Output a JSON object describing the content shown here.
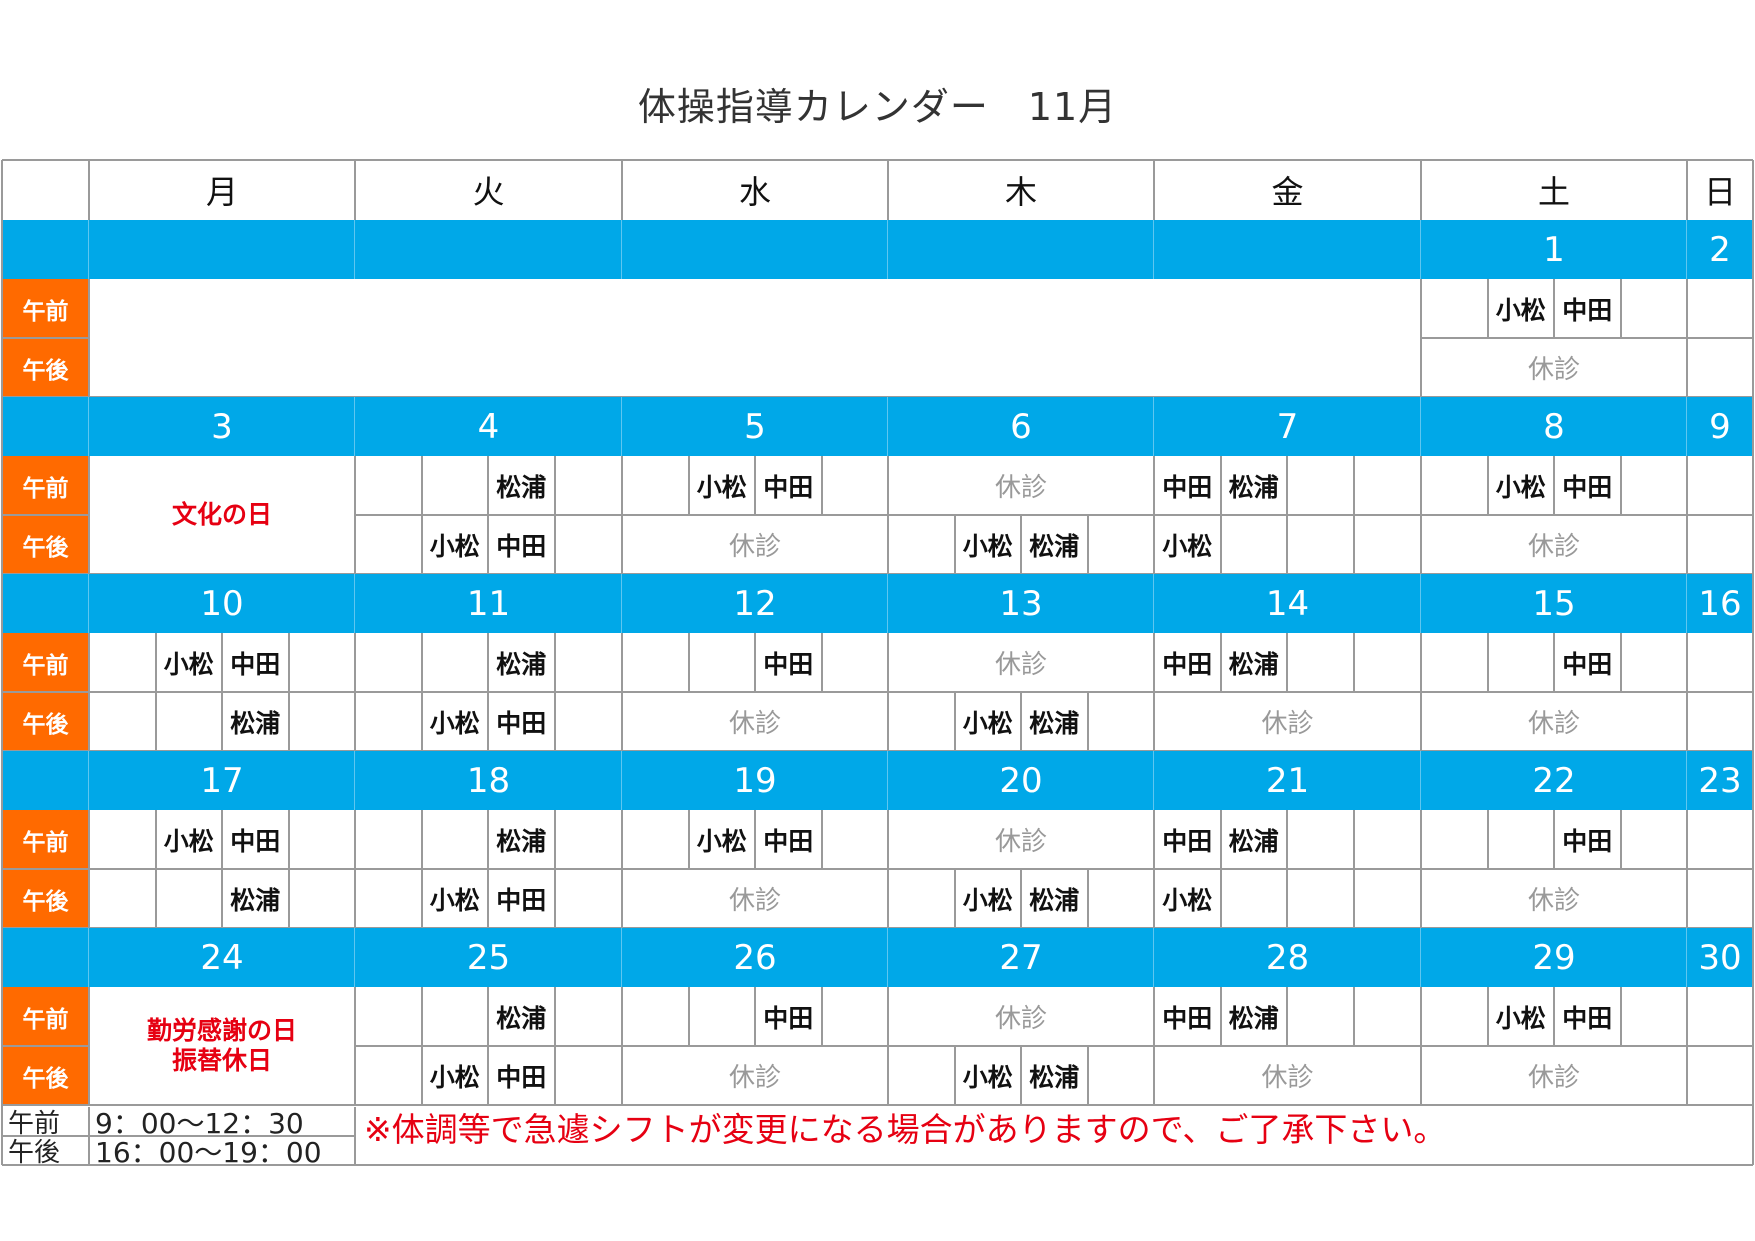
{
  "title": "体操指導カレンダー　11月",
  "weekdays": [
    "月",
    "火",
    "水",
    "木",
    "金",
    "土",
    "日"
  ],
  "periods": [
    "午前",
    "午後"
  ],
  "closed_label": "休診",
  "colors": {
    "date_row": "#00a8e8",
    "period_label": "#ff6a00",
    "holiday_text": "#e60012",
    "closed_text": "#999999"
  },
  "weeks": [
    {
      "dates": [
        "",
        "",
        "",
        "",
        "",
        "1",
        "2"
      ],
      "am": [
        [],
        [],
        [],
        [],
        [],
        [
          "",
          "小松",
          "中田",
          ""
        ],
        []
      ],
      "pm": [
        [],
        [],
        [],
        [],
        [],
        "closed",
        []
      ]
    },
    {
      "dates": [
        "3",
        "4",
        "5",
        "6",
        "7",
        "8",
        "9"
      ],
      "am": [
        "holiday",
        [
          "",
          "",
          "松浦",
          ""
        ],
        [
          "",
          "小松",
          "中田",
          ""
        ],
        "closed",
        [
          "中田",
          "松浦",
          "",
          ""
        ],
        [
          "",
          "小松",
          "中田",
          ""
        ],
        []
      ],
      "pm": [
        "holiday",
        [
          "",
          "小松",
          "中田",
          ""
        ],
        "closed",
        [
          "",
          "小松",
          "松浦",
          ""
        ],
        [
          "小松",
          "",
          "",
          ""
        ],
        "closed",
        []
      ],
      "holiday": "文化の日"
    },
    {
      "dates": [
        "10",
        "11",
        "12",
        "13",
        "14",
        "15",
        "16"
      ],
      "am": [
        [
          "",
          "小松",
          "中田",
          ""
        ],
        [
          "",
          "",
          "松浦",
          ""
        ],
        [
          "",
          "",
          "中田",
          ""
        ],
        "closed",
        [
          "中田",
          "松浦",
          "",
          ""
        ],
        [
          "",
          "",
          "中田",
          ""
        ],
        []
      ],
      "pm": [
        [
          "",
          "",
          "松浦",
          ""
        ],
        [
          "",
          "小松",
          "中田",
          ""
        ],
        "closed",
        [
          "",
          "小松",
          "松浦",
          ""
        ],
        "closed",
        "closed",
        []
      ]
    },
    {
      "dates": [
        "17",
        "18",
        "19",
        "20",
        "21",
        "22",
        "23"
      ],
      "am": [
        [
          "",
          "小松",
          "中田",
          ""
        ],
        [
          "",
          "",
          "松浦",
          ""
        ],
        [
          "",
          "小松",
          "中田",
          ""
        ],
        "closed",
        [
          "中田",
          "松浦",
          "",
          ""
        ],
        [
          "",
          "",
          "中田",
          ""
        ],
        []
      ],
      "pm": [
        [
          "",
          "",
          "松浦",
          ""
        ],
        [
          "",
          "小松",
          "中田",
          ""
        ],
        "closed",
        [
          "",
          "小松",
          "松浦",
          ""
        ],
        [
          "小松",
          "",
          "",
          ""
        ],
        "closed",
        []
      ]
    },
    {
      "dates": [
        "24",
        "25",
        "26",
        "27",
        "28",
        "29",
        "30"
      ],
      "am": [
        "holiday",
        [
          "",
          "",
          "松浦",
          ""
        ],
        [
          "",
          "",
          "中田",
          ""
        ],
        "closed",
        [
          "中田",
          "松浦",
          "",
          ""
        ],
        [
          "",
          "小松",
          "中田",
          ""
        ],
        []
      ],
      "pm": [
        "holiday",
        [
          "",
          "小松",
          "中田",
          ""
        ],
        "closed",
        [
          "",
          "小松",
          "松浦",
          ""
        ],
        "closed",
        "closed",
        []
      ],
      "holiday": "勤労感謝の日\n振替休日"
    }
  ],
  "hours": [
    {
      "label": "午前",
      "time": "9：00〜12：30"
    },
    {
      "label": "午後",
      "time": "16：00〜19：00"
    }
  ],
  "notice": "※体調等で急遽シフトが変更になる場合がありますので、ご了承下さい。"
}
